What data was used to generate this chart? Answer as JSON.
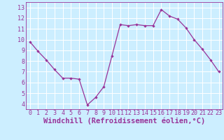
{
  "x": [
    0,
    1,
    2,
    3,
    4,
    5,
    6,
    7,
    8,
    9,
    10,
    11,
    12,
    13,
    14,
    15,
    16,
    17,
    18,
    19,
    20,
    21,
    22,
    23
  ],
  "y": [
    9.8,
    8.9,
    8.1,
    7.2,
    6.4,
    6.4,
    6.3,
    3.9,
    4.6,
    5.6,
    8.5,
    11.4,
    11.3,
    11.4,
    11.3,
    11.3,
    12.8,
    12.2,
    11.9,
    11.1,
    10.0,
    9.1,
    8.1,
    7.0
  ],
  "line_color": "#993399",
  "marker_color": "#993399",
  "bg_color": "#cceeff",
  "grid_color": "#ffffff",
  "xlabel": "Windchill (Refroidissement éolien,°C)",
  "xlim": [
    -0.5,
    23.5
  ],
  "ylim": [
    3.5,
    13.5
  ],
  "yticks": [
    4,
    5,
    6,
    7,
    8,
    9,
    10,
    11,
    12,
    13
  ],
  "xticks": [
    0,
    1,
    2,
    3,
    4,
    5,
    6,
    7,
    8,
    9,
    10,
    11,
    12,
    13,
    14,
    15,
    16,
    17,
    18,
    19,
    20,
    21,
    22,
    23
  ],
  "tick_fontsize": 6.0,
  "xlabel_fontsize": 7.5
}
